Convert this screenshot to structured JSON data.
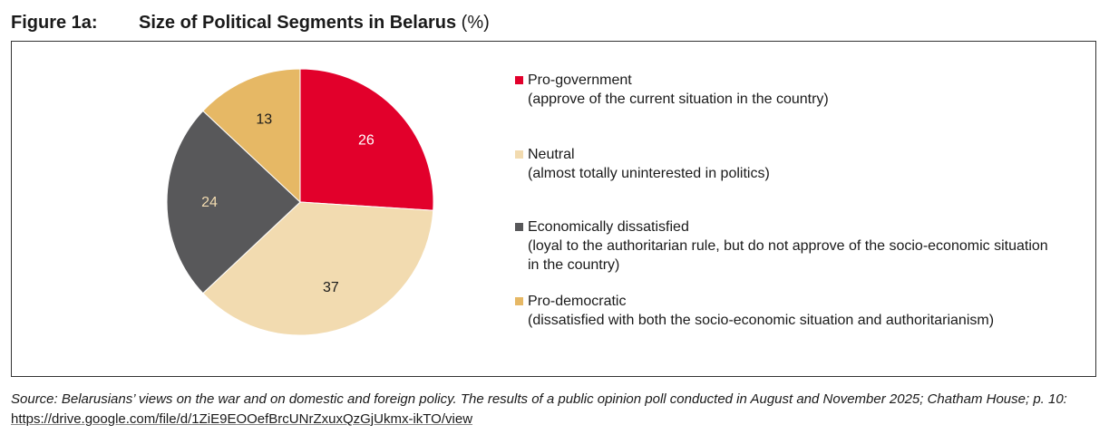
{
  "figure_label": "Figure 1a:",
  "chart_data": {
    "type": "pie",
    "title": "Size of Political Segments in Belarus",
    "unit": "(%)",
    "slices": [
      {
        "label": "Pro-government",
        "description": "(approve of the current situation in the country)",
        "value": 26,
        "color": "#e2002b",
        "label_color": "#ffffff"
      },
      {
        "label": "Neutral",
        "description": "(almost totally uninterested in politics)",
        "value": 37,
        "color": "#f2dbb0",
        "label_color": "#1a1a1a"
      },
      {
        "label": "Economically dissatisfied",
        "description": "(loyal to the authoritarian rule, but do not approve of the socio-economic situation in the country)",
        "value": 24,
        "color": "#58585a",
        "label_color": "#f2dbb0"
      },
      {
        "label": "Pro-democratic",
        "description": "(dissatisfied with both the socio-economic situation and authoritarianism)",
        "value": 13,
        "color": "#e6b865",
        "label_color": "#1a1a1a"
      }
    ],
    "legend_position": "right"
  },
  "source": {
    "text": "Source: Belarusians’ views on the war and on domestic and foreign policy. The results of a public opinion poll conducted in August and November 2025; Chatham House; p. 10: ",
    "link": "https://drive.google.com/file/d/1ZiE9EOOefBrcUNrZxuxQzGjUkmx-ikTO/view"
  }
}
